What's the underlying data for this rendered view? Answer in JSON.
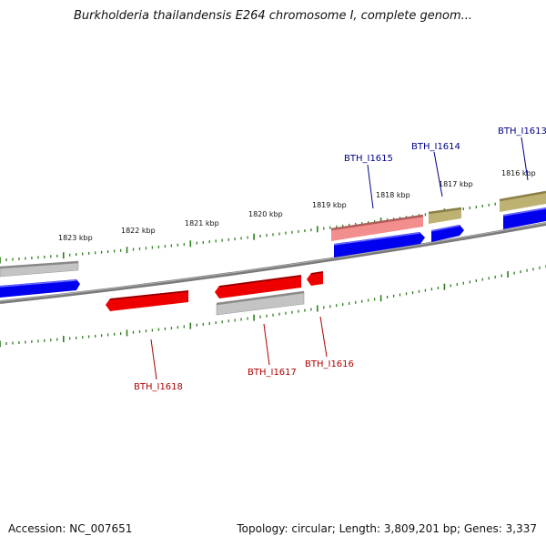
{
  "title": "Burkholderia thailandensis E264 chromosome I, complete genom...",
  "accession": "Accession: NC_007651",
  "summary": "Topology: circular; Length: 3,809,201 bp; Genes: 3,337",
  "colors": {
    "backbone": "#7a7a7a",
    "tick": "#2e7d1e",
    "forward": "#0000ee",
    "reverse": "#ee0000",
    "gray": "#bdbdbd",
    "pink": "#f08a8a",
    "olive": "#b8ad6a",
    "label_forward": "#00008b",
    "label_reverse": "#b00000"
  },
  "kbp_labels": [
    "1823 kbp",
    "1822 kbp",
    "1821 kbp",
    "1820 kbp",
    "1819 kbp",
    "1818 kbp",
    "1817 kbp",
    "1816 kbp"
  ],
  "gene_labels": {
    "forward": [
      "BTH_I1615",
      "BTH_I1614",
      "BTH_I1613"
    ],
    "reverse": [
      "BTH_I1618",
      "BTH_I1617",
      "BTH_I1616"
    ]
  }
}
